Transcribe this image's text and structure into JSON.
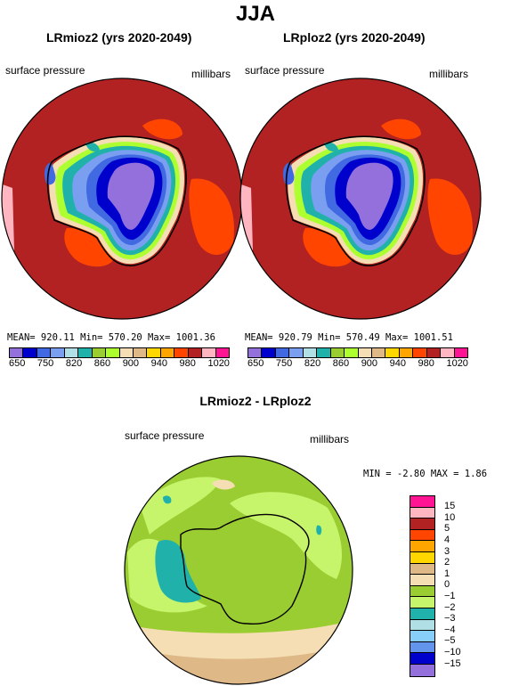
{
  "page_title": "JJA",
  "panel_left": {
    "title": "LRmioz2 (yrs 2020-2049)",
    "field_label": "surface pressure",
    "units_label": "millibars",
    "stats": "MEAN= 920.11   Min= 570.20   Max= 1001.36"
  },
  "panel_right": {
    "title": "LRploz2 (yrs 2020-2049)",
    "field_label": "surface pressure",
    "units_label": "millibars",
    "stats": "MEAN= 920.79   Min= 570.49   Max= 1001.51"
  },
  "top_colorbar": {
    "colors": [
      "#9370db",
      "#0000cd",
      "#4169e1",
      "#7b9ff0",
      "#b0e0e6",
      "#20b2aa",
      "#9acd32",
      "#adff2f",
      "#f5deb3",
      "#deb887",
      "#ffd700",
      "#ffa500",
      "#ff4500",
      "#b22222",
      "#ffb6c1",
      "#ff1493"
    ],
    "tick_labels": [
      "650",
      "750",
      "820",
      "860",
      "900",
      "940",
      "980",
      "1020"
    ]
  },
  "panel_diff": {
    "title": "LRmioz2 - LRploz2",
    "field_label": "surface pressure",
    "units_label": "millibars",
    "min_max": "MIN =   -2.80 MAX =    1.86"
  },
  "diff_colorbar": {
    "colors": [
      "#ff1493",
      "#ffb6c1",
      "#b22222",
      "#ff4500",
      "#ffa500",
      "#ffd700",
      "#deb887",
      "#f5deb3",
      "#9acd32",
      "#c6f56b",
      "#20b2aa",
      "#b0e0e6",
      "#87cefa",
      "#6495ed",
      "#0000cd",
      "#9370db"
    ],
    "tick_labels": [
      "15",
      "10",
      "5",
      "4",
      "3",
      "2",
      "1",
      "0",
      "−1",
      "−2",
      "−3",
      "−4",
      "−5",
      "−10",
      "−15"
    ]
  },
  "map_colors": {
    "ocean_high": "#b22222",
    "orange_patch": "#ff4500",
    "pink_edge": "#ffb6c1",
    "diff_green": "#9acd32",
    "diff_light_green": "#c6f56b",
    "diff_tan": "#deb887",
    "diff_wheat": "#f5deb3",
    "diff_teal": "#20b2aa"
  }
}
